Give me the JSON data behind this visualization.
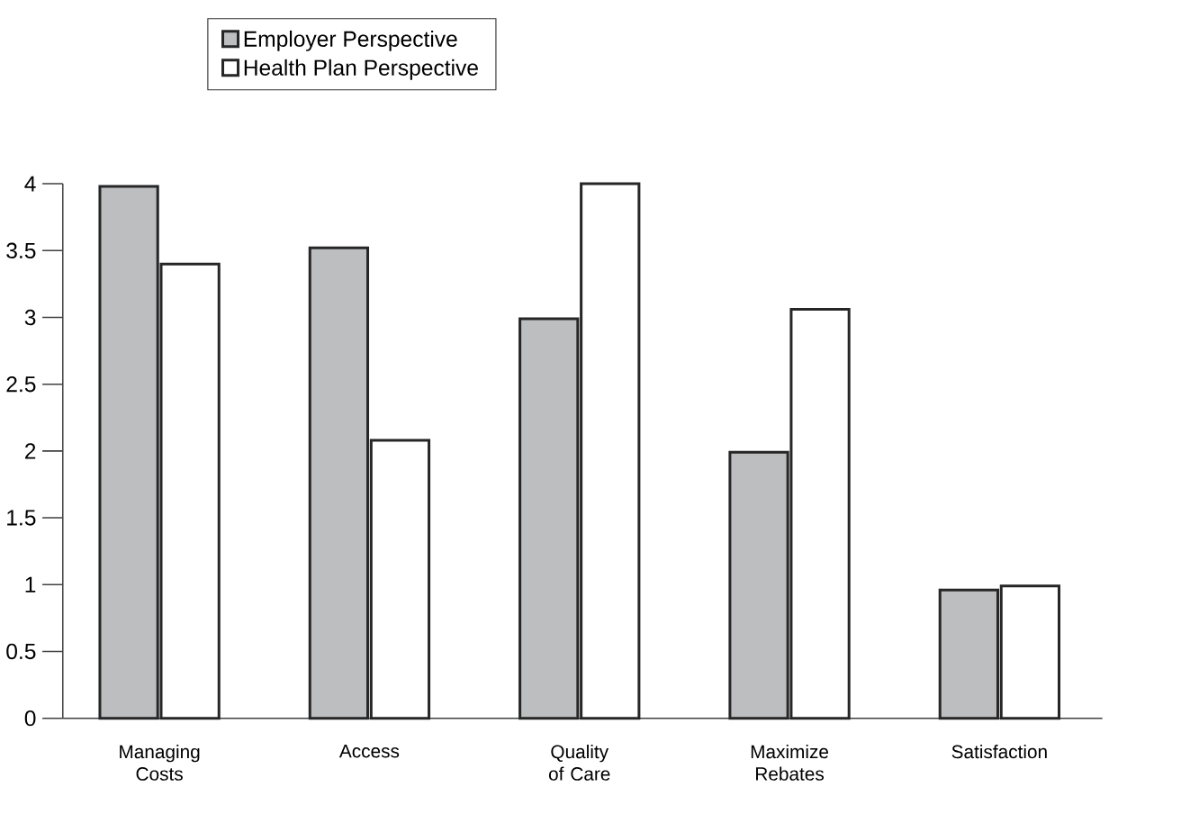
{
  "chart_data": {
    "type": "bar",
    "categories": [
      "Managing Costs",
      "Access",
      "Quality of Care",
      "Maximize Rebates",
      "Satisfaction"
    ],
    "series": [
      {
        "name": "Employer Perspective",
        "color": "#bdbebf",
        "values": [
          3.98,
          3.52,
          2.99,
          1.99,
          0.96
        ]
      },
      {
        "name": "Health Plan Perspective",
        "color": "#ffffff",
        "values": [
          3.4,
          2.08,
          4.0,
          3.06,
          0.99
        ]
      }
    ],
    "ylim": [
      0,
      4
    ],
    "yticks": [
      0,
      0.5,
      1,
      1.5,
      2,
      2.5,
      3,
      3.5,
      4
    ],
    "legend": "top",
    "grid": false
  }
}
